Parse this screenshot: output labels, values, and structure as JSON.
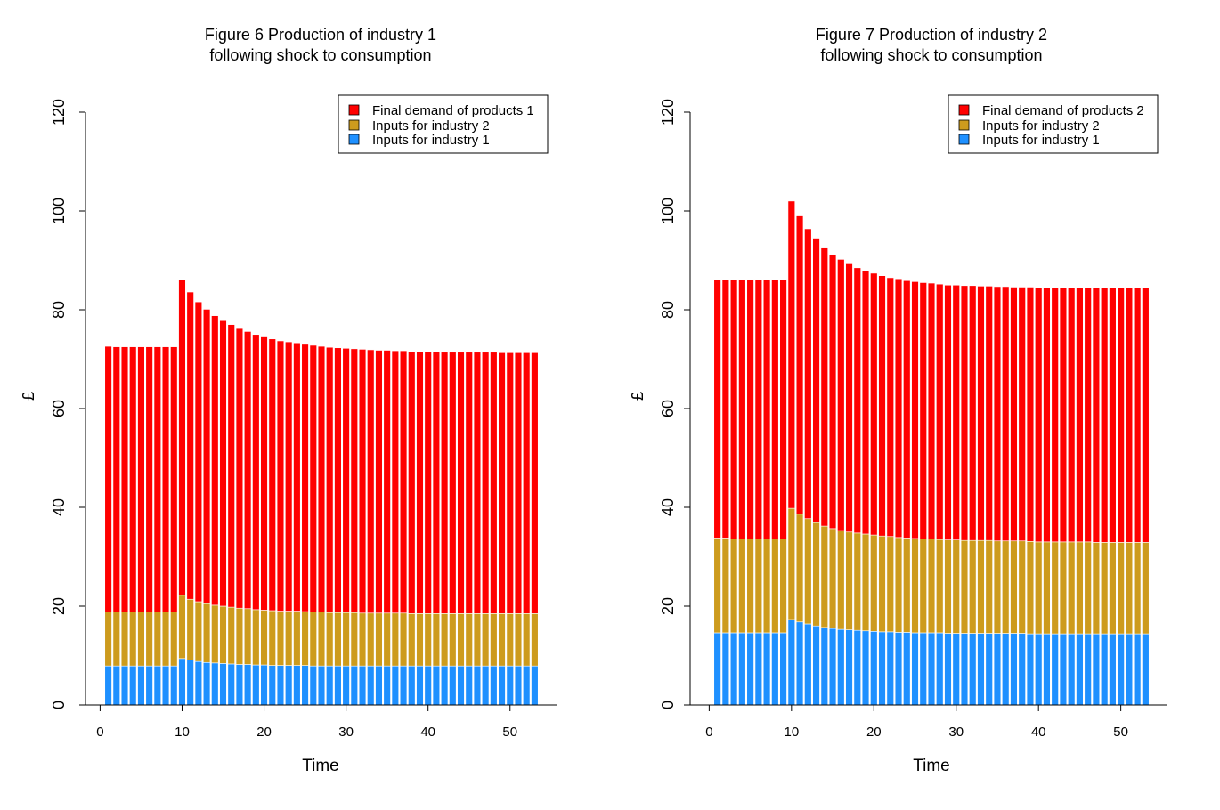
{
  "chart_data": [
    {
      "type": "bar",
      "stacked": true,
      "title_line1": "Figure 6  Production of industry 1",
      "title_line2": "following shock to consumption",
      "xlabel": "Time",
      "ylabel": "£",
      "ylim": [
        0,
        120
      ],
      "yticks": [
        "0",
        "20",
        "40",
        "60",
        "80",
        "100",
        "120"
      ],
      "xlim": [
        0,
        55
      ],
      "xticks": [
        "0",
        "10",
        "20",
        "30",
        "40",
        "50"
      ],
      "legend_position": "top-right",
      "legend": [
        "Final demand of products 1",
        "Inputs for industry 2",
        "Inputs for industry 1"
      ],
      "colors": {
        "final_demand": "#ff0000",
        "inputs_ind2": "#cd9b1d",
        "inputs_ind1": "#1e90ff"
      },
      "x": [
        1,
        2,
        3,
        4,
        5,
        6,
        7,
        8,
        9,
        10,
        11,
        12,
        13,
        14,
        15,
        16,
        17,
        18,
        19,
        20,
        21,
        22,
        23,
        24,
        25,
        26,
        27,
        28,
        29,
        30,
        31,
        32,
        33,
        34,
        35,
        36,
        37,
        38,
        39,
        40,
        41,
        42,
        43,
        44,
        45,
        46,
        47,
        48,
        49,
        50,
        51,
        52,
        53
      ],
      "series": [
        {
          "name": "Inputs for industry 1",
          "values": [
            7.9,
            7.9,
            7.9,
            7.9,
            7.9,
            7.9,
            7.9,
            7.9,
            7.9,
            9.4,
            9.1,
            8.8,
            8.6,
            8.5,
            8.4,
            8.3,
            8.2,
            8.2,
            8.1,
            8.1,
            8.0,
            8.0,
            8.0,
            8.0,
            8.0,
            7.9,
            7.9,
            7.9,
            7.9,
            7.9,
            7.9,
            7.9,
            7.9,
            7.9,
            7.9,
            7.9,
            7.9,
            7.9,
            7.9,
            7.9,
            7.9,
            7.9,
            7.9,
            7.9,
            7.9,
            7.9,
            7.9,
            7.9,
            7.9,
            7.9,
            7.9,
            7.9,
            7.9
          ]
        },
        {
          "name": "Inputs for industry 2",
          "values": [
            10.9,
            10.9,
            10.9,
            10.9,
            10.9,
            10.9,
            10.9,
            10.9,
            10.9,
            12.8,
            12.3,
            12.1,
            11.9,
            11.7,
            11.6,
            11.5,
            11.4,
            11.3,
            11.2,
            11.1,
            11.1,
            11.0,
            11.0,
            11.0,
            10.9,
            10.9,
            10.9,
            10.8,
            10.8,
            10.8,
            10.8,
            10.7,
            10.7,
            10.7,
            10.7,
            10.7,
            10.7,
            10.6,
            10.6,
            10.6,
            10.6,
            10.6,
            10.6,
            10.6,
            10.6,
            10.6,
            10.6,
            10.6,
            10.6,
            10.6,
            10.6,
            10.6,
            10.6
          ]
        },
        {
          "name": "Final demand of products 1",
          "values": [
            53.8,
            53.7,
            53.7,
            53.7,
            53.7,
            53.7,
            53.7,
            53.7,
            53.7,
            63.8,
            62.2,
            60.7,
            59.6,
            58.6,
            57.8,
            57.2,
            56.6,
            56.1,
            55.7,
            55.3,
            55.0,
            54.7,
            54.5,
            54.3,
            54.1,
            54.0,
            53.8,
            53.7,
            53.6,
            53.5,
            53.4,
            53.4,
            53.3,
            53.2,
            53.2,
            53.1,
            53.1,
            53.0,
            53.0,
            53.0,
            53.0,
            52.9,
            52.9,
            52.9,
            52.9,
            52.9,
            52.9,
            52.9,
            52.8,
            52.8,
            52.8,
            52.8,
            52.8
          ]
        }
      ]
    },
    {
      "type": "bar",
      "stacked": true,
      "title_line1": "Figure 7  Production of industry 2",
      "title_line2": "following shock to consumption",
      "xlabel": "Time",
      "ylabel": "£",
      "ylim": [
        0,
        120
      ],
      "yticks": [
        "0",
        "20",
        "40",
        "60",
        "80",
        "100",
        "120"
      ],
      "xlim": [
        0,
        55
      ],
      "xticks": [
        "0",
        "10",
        "20",
        "30",
        "40",
        "50"
      ],
      "legend_position": "top-right",
      "legend": [
        "Final demand of products 2",
        "Inputs for industry 2",
        "Inputs for industry 1"
      ],
      "colors": {
        "final_demand": "#ff0000",
        "inputs_ind2": "#cd9b1d",
        "inputs_ind1": "#1e90ff"
      },
      "x": [
        1,
        2,
        3,
        4,
        5,
        6,
        7,
        8,
        9,
        10,
        11,
        12,
        13,
        14,
        15,
        16,
        17,
        18,
        19,
        20,
        21,
        22,
        23,
        24,
        25,
        26,
        27,
        28,
        29,
        30,
        31,
        32,
        33,
        34,
        35,
        36,
        37,
        38,
        39,
        40,
        41,
        42,
        43,
        44,
        45,
        46,
        47,
        48,
        49,
        50,
        51,
        52,
        53
      ],
      "series": [
        {
          "name": "Inputs for industry 1",
          "values": [
            14.6,
            14.6,
            14.6,
            14.6,
            14.6,
            14.6,
            14.6,
            14.6,
            14.6,
            17.3,
            16.8,
            16.4,
            16.0,
            15.7,
            15.5,
            15.3,
            15.2,
            15.1,
            15.0,
            14.9,
            14.8,
            14.8,
            14.7,
            14.7,
            14.6,
            14.6,
            14.6,
            14.6,
            14.5,
            14.5,
            14.5,
            14.5,
            14.5,
            14.5,
            14.5,
            14.5,
            14.5,
            14.5,
            14.4,
            14.4,
            14.4,
            14.4,
            14.4,
            14.4,
            14.4,
            14.4,
            14.4,
            14.4,
            14.4,
            14.4,
            14.4,
            14.4,
            14.4
          ]
        },
        {
          "name": "Inputs for industry 2",
          "values": [
            19.2,
            19.2,
            19.0,
            19.0,
            19.0,
            19.0,
            19.0,
            19.0,
            19.0,
            22.5,
            21.8,
            21.3,
            20.9,
            20.5,
            20.2,
            20.0,
            19.8,
            19.7,
            19.6,
            19.5,
            19.4,
            19.3,
            19.2,
            19.1,
            19.1,
            19.0,
            19.0,
            18.9,
            18.9,
            18.9,
            18.8,
            18.8,
            18.8,
            18.8,
            18.7,
            18.7,
            18.7,
            18.7,
            18.7,
            18.6,
            18.6,
            18.6,
            18.6,
            18.6,
            18.6,
            18.6,
            18.5,
            18.5,
            18.5,
            18.5,
            18.5,
            18.5,
            18.5
          ]
        },
        {
          "name": "Final demand of products 2",
          "values": [
            52.2,
            52.2,
            52.4,
            52.4,
            52.4,
            52.4,
            52.4,
            52.4,
            52.4,
            62.2,
            60.4,
            58.7,
            57.6,
            56.3,
            55.5,
            54.9,
            54.3,
            53.7,
            53.3,
            53.0,
            52.7,
            52.4,
            52.2,
            52.1,
            52.0,
            51.9,
            51.8,
            51.7,
            51.6,
            51.6,
            51.6,
            51.6,
            51.5,
            51.5,
            51.5,
            51.5,
            51.4,
            51.4,
            51.5,
            51.5,
            51.5,
            51.5,
            51.5,
            51.5,
            51.5,
            51.5,
            51.6,
            51.6,
            51.6,
            51.6,
            51.6,
            51.6,
            51.6
          ]
        }
      ]
    }
  ]
}
